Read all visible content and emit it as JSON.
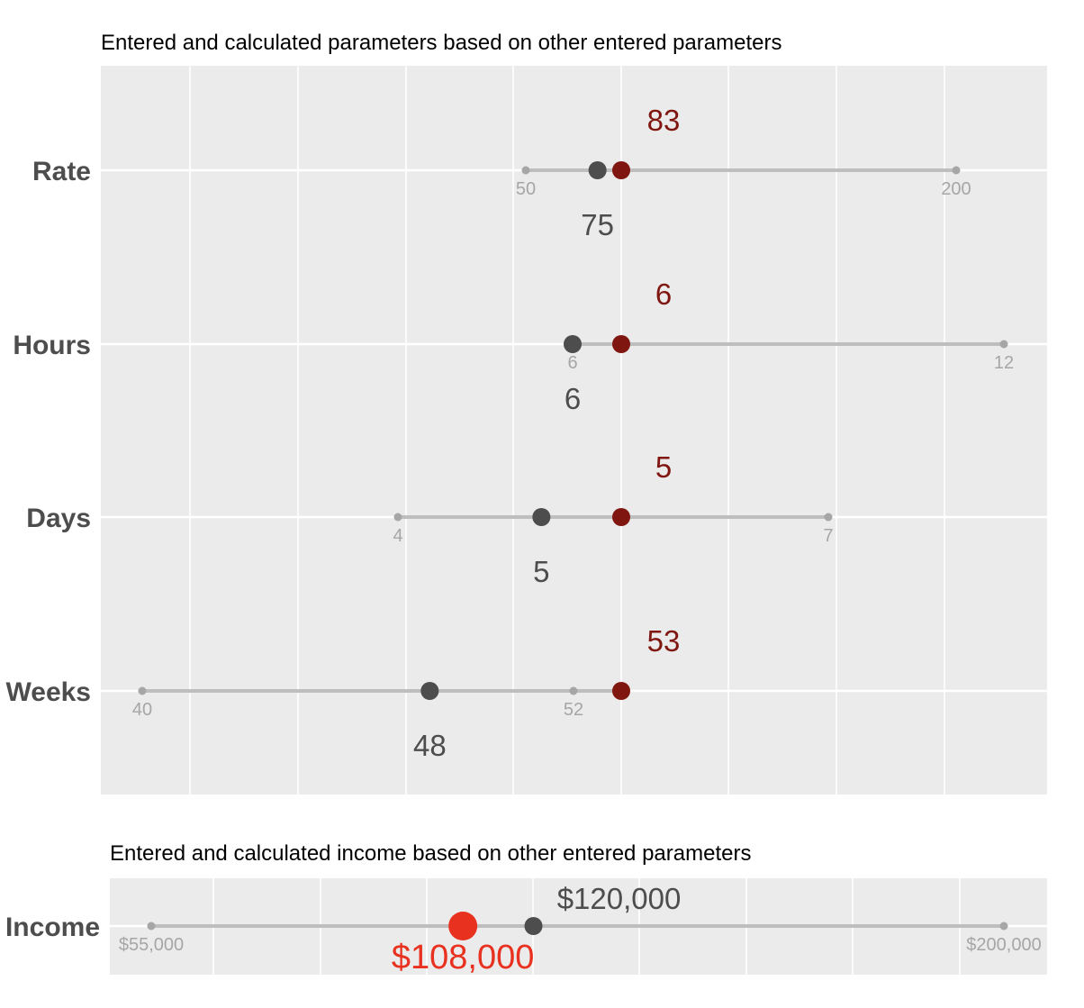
{
  "chart_data": [
    {
      "type": "dot-range",
      "title": "Entered and calculated parameters based on other entered parameters",
      "rows": [
        {
          "label": "Rate",
          "min": 50,
          "max": 200,
          "min_label": "50",
          "max_label": "200",
          "entered": 75,
          "entered_label": "75",
          "calculated": 83,
          "calculated_label": "83"
        },
        {
          "label": "Hours",
          "min": 6,
          "max": 12,
          "min_label": "6",
          "max_label": "12",
          "entered": 6,
          "entered_label": "6",
          "calculated": 6,
          "calculated_label": "6"
        },
        {
          "label": "Days",
          "min": 4,
          "max": 7,
          "min_label": "4",
          "max_label": "7",
          "entered": 5,
          "entered_label": "5",
          "calculated": 5,
          "calculated_label": "5"
        },
        {
          "label": "Weeks",
          "min": 40,
          "max": 52,
          "min_label": "40",
          "max_label": "52",
          "entered": 48,
          "entered_label": "48",
          "calculated": 53,
          "calculated_label": "53"
        }
      ],
      "grid": true
    },
    {
      "type": "dot-range",
      "title": "Entered and calculated income based on other entered parameters",
      "rows": [
        {
          "label": "Income",
          "min": 55000,
          "max": 200000,
          "min_label": "$55,000",
          "max_label": "$200,000",
          "entered": 120000,
          "entered_label": "$120,000",
          "calculated": 108000,
          "calculated_label": "$108,000"
        }
      ],
      "grid": true
    }
  ],
  "colors": {
    "panel": "#ebebeb",
    "grid": "#ffffff",
    "range": "#bebebe",
    "range_text": "#a6a6a6",
    "entered": "#4d4d4d",
    "calculated": "#7f1610",
    "calculated_income": "#e8311f",
    "axis_text": "#4d4d4d",
    "title": "#000000"
  }
}
